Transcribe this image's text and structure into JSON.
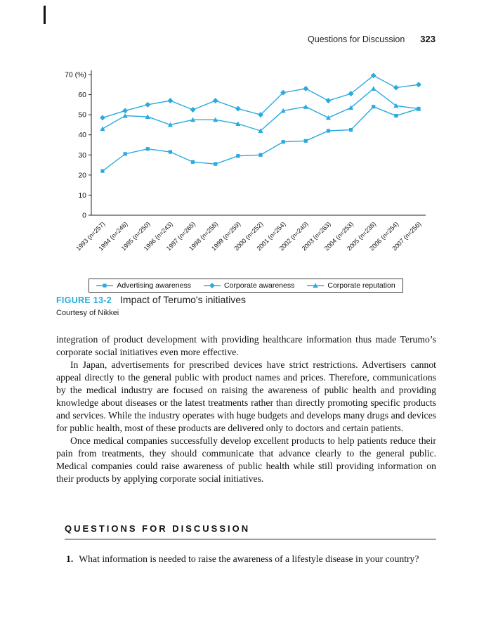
{
  "page": {
    "header": {
      "running_title": "Questions for Discussion",
      "page_number": "323"
    }
  },
  "figure": {
    "label": "FIGURE 13-2",
    "title": "Impact of Terumo's initiatives",
    "credit": "Courtesy of Nikkei"
  },
  "chart_data": {
    "type": "line",
    "categories": [
      "1993 (n=257)",
      "1994 (n=246)",
      "1995 (n=250)",
      "1996 (n=243)",
      "1997 (n=265)",
      "1998 (n=258)",
      "1999 (n=259)",
      "2000 (n=252)",
      "2001 (n=254)",
      "2002 (n=240)",
      "2003 (n=263)",
      "2004 (n=253)",
      "2005 (n=238)",
      "2006 (n=254)",
      "2007 (n=256)"
    ],
    "series": [
      {
        "name": "Advertising awareness",
        "marker": "square",
        "values": [
          22,
          30.5,
          33,
          31.5,
          26.5,
          25.5,
          29.5,
          30,
          36.5,
          37,
          42,
          42.5,
          54,
          49.5,
          53
        ]
      },
      {
        "name": "Corporate awareness",
        "marker": "diamond",
        "values": [
          48.5,
          52,
          55,
          57,
          52.5,
          57,
          53,
          50,
          61,
          63,
          57,
          60.5,
          69.5,
          63.5,
          65
        ]
      },
      {
        "name": "Corporate reputation",
        "marker": "triangle",
        "values": [
          43,
          49.5,
          49,
          45,
          47.5,
          47.5,
          45.5,
          42,
          52,
          54,
          48.5,
          53.5,
          63,
          54.5,
          53
        ]
      }
    ],
    "title": "",
    "xlabel": "",
    "ylabel_top": "70 (%)",
    "ylim": [
      0,
      70
    ],
    "yticks": [
      0,
      10,
      20,
      30,
      40,
      50,
      60,
      70
    ],
    "grid": false,
    "legend_position": "bottom",
    "line_color": "#2aaadf"
  },
  "body": {
    "paragraphs": [
      {
        "text": "integration of product development with providing healthcare information thus made Terumo’s corporate social initiatives even more effective."
      },
      {
        "text": "In Japan, advertisements for prescribed devices have strict restrictions. Advertisers cannot appeal directly to the general public with product names and prices. Therefore, communications by the medical industry are focused on raising the awareness of public health and providing knowledge about diseases or the latest treatments rather than directly promoting specific products and services. While the industry operates with huge budgets and develops many drugs and devices for public health, most of these products are delivered only to doctors and certain patients."
      },
      {
        "text": "Once medical companies successfully develop excellent products to help patients reduce their pain from treatments, they should communicate that advance clearly to the general public. Medical companies could raise awareness of public health while still providing information on their products by applying corporate social initiatives."
      }
    ]
  },
  "questions": {
    "heading": "QUESTIONS FOR DISCUSSION",
    "items": [
      {
        "number": "1.",
        "text": "What information is needed to raise the awareness of a lifestyle disease in your country?"
      }
    ]
  },
  "colors": {
    "accent": "#2aaadf",
    "text": "#111111"
  }
}
